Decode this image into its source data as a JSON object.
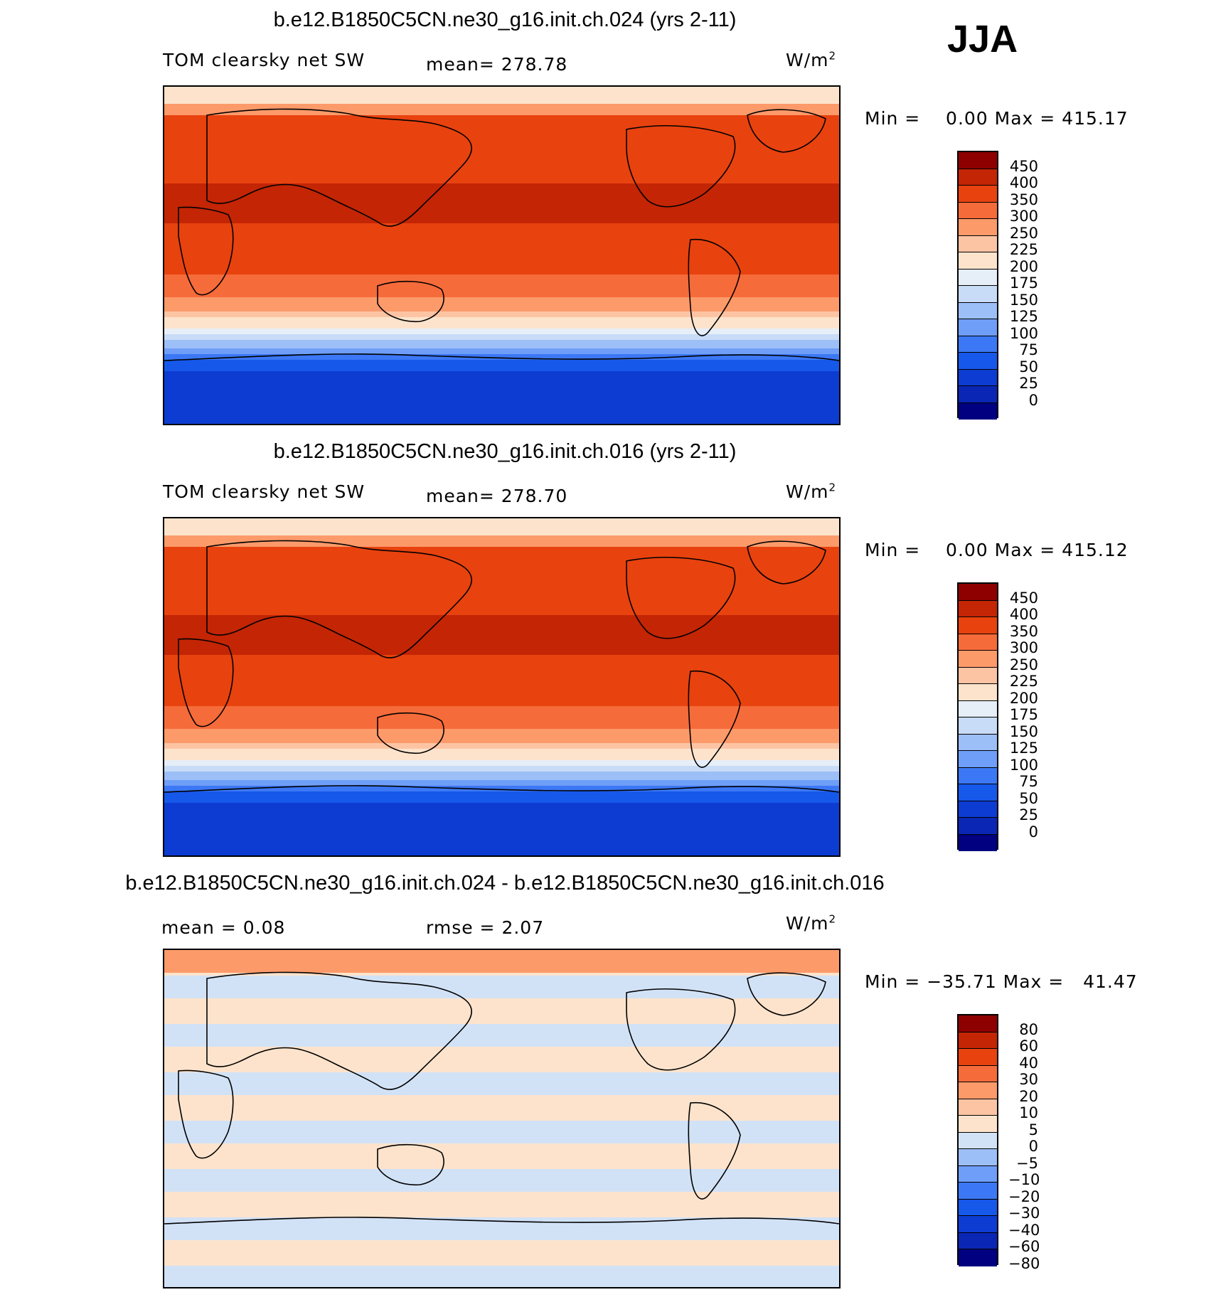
{
  "season": "JJA",
  "colors": {
    "abs": [
      "#000080",
      "#0a26b4",
      "#0d3cd2",
      "#1658ea",
      "#3c78f5",
      "#6e9ef8",
      "#9dbff7",
      "#c8dcf7",
      "#e6eef8",
      "#fde3cc",
      "#fdc4a4",
      "#fc9a6a",
      "#f66b3a",
      "#e8420f",
      "#c32505",
      "#8e0000"
    ],
    "diff": [
      "#000080",
      "#0a26b4",
      "#0d3cd2",
      "#1658ea",
      "#3c78f5",
      "#6e9ef8",
      "#9dbff7",
      "#d2e2f6",
      "#fde3cc",
      "#fdc4a4",
      "#fc9a6a",
      "#f66b3a",
      "#e8420f",
      "#c32505",
      "#8e0000"
    ]
  },
  "panels": [
    {
      "title": "b.e12.B1850C5CN.ne30_g16.init.ch.024 (yrs 2-11)",
      "left_label": "TOM clearsky net SW",
      "mid_label": "mean= 278.78",
      "units": "W/m",
      "units_sup": "2",
      "stats": "Min =    0.00 Max = 415.17",
      "colorbar_labels": [
        "450",
        "400",
        "350",
        "300",
        "250",
        "225",
        "200",
        "175",
        "150",
        "125",
        "100",
        "75",
        "50",
        "25",
        "0"
      ],
      "palette": "abs"
    },
    {
      "title": "b.e12.B1850C5CN.ne30_g16.init.ch.016 (yrs 2-11)",
      "left_label": "TOM clearsky net SW",
      "mid_label": "mean= 278.70",
      "units": "W/m",
      "units_sup": "2",
      "stats": "Min =    0.00 Max = 415.12",
      "colorbar_labels": [
        "450",
        "400",
        "350",
        "300",
        "250",
        "225",
        "200",
        "175",
        "150",
        "125",
        "100",
        "75",
        "50",
        "25",
        "0"
      ],
      "palette": "abs"
    },
    {
      "title": "b.e12.B1850C5CN.ne30_g16.init.ch.024 - b.e12.B1850C5CN.ne30_g16.init.ch.016",
      "left_label": "mean =    0.08",
      "mid_label": "rmse =    2.07",
      "units": "W/m",
      "units_sup": "2",
      "stats": "Min = −35.71 Max =   41.47",
      "colorbar_labels": [
        "80",
        "60",
        "40",
        "30",
        "20",
        "10",
        "5",
        "0",
        "−5",
        "−10",
        "−20",
        "−30",
        "−40",
        "−60",
        "−80"
      ],
      "palette": "diff"
    }
  ]
}
